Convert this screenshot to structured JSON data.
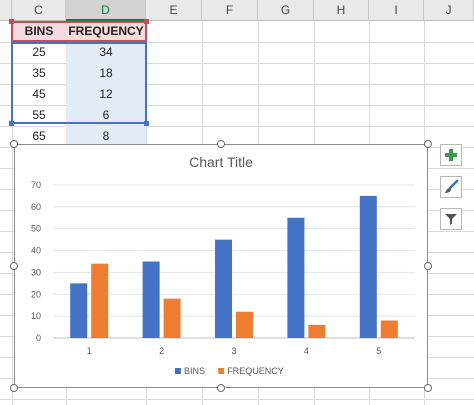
{
  "columns": [
    "C",
    "D",
    "E",
    "F",
    "G",
    "H",
    "I",
    "J"
  ],
  "table": {
    "headers": [
      "BINS",
      "FREQUENCY"
    ],
    "rows": [
      [
        "25",
        "34"
      ],
      [
        "35",
        "18"
      ],
      [
        "45",
        "12"
      ],
      [
        "55",
        "6"
      ],
      [
        "65",
        "8"
      ]
    ]
  },
  "chart_data": {
    "type": "bar",
    "title": "Chart Title",
    "categories": [
      "1",
      "2",
      "3",
      "4",
      "5"
    ],
    "series": [
      {
        "name": "BINS",
        "values": [
          25,
          35,
          45,
          55,
          65
        ],
        "color": "#4472c4"
      },
      {
        "name": "FREQUENCY",
        "values": [
          34,
          18,
          12,
          6,
          8
        ],
        "color": "#ed7d31"
      }
    ],
    "ylim": [
      0,
      70
    ],
    "yticks": [
      "0",
      "10",
      "20",
      "30",
      "40",
      "50",
      "60",
      "70"
    ],
    "grid": true,
    "legend": "bottom"
  },
  "sidebar": {
    "buttons": [
      {
        "icon": "plus-icon",
        "label": "Chart Elements"
      },
      {
        "icon": "brush-icon",
        "label": "Chart Styles"
      },
      {
        "icon": "filter-icon",
        "label": "Chart Filters"
      }
    ],
    "colors": {
      "plus": "#3a9a54",
      "brush": "#3b6fb6",
      "filter": "#555555"
    }
  }
}
